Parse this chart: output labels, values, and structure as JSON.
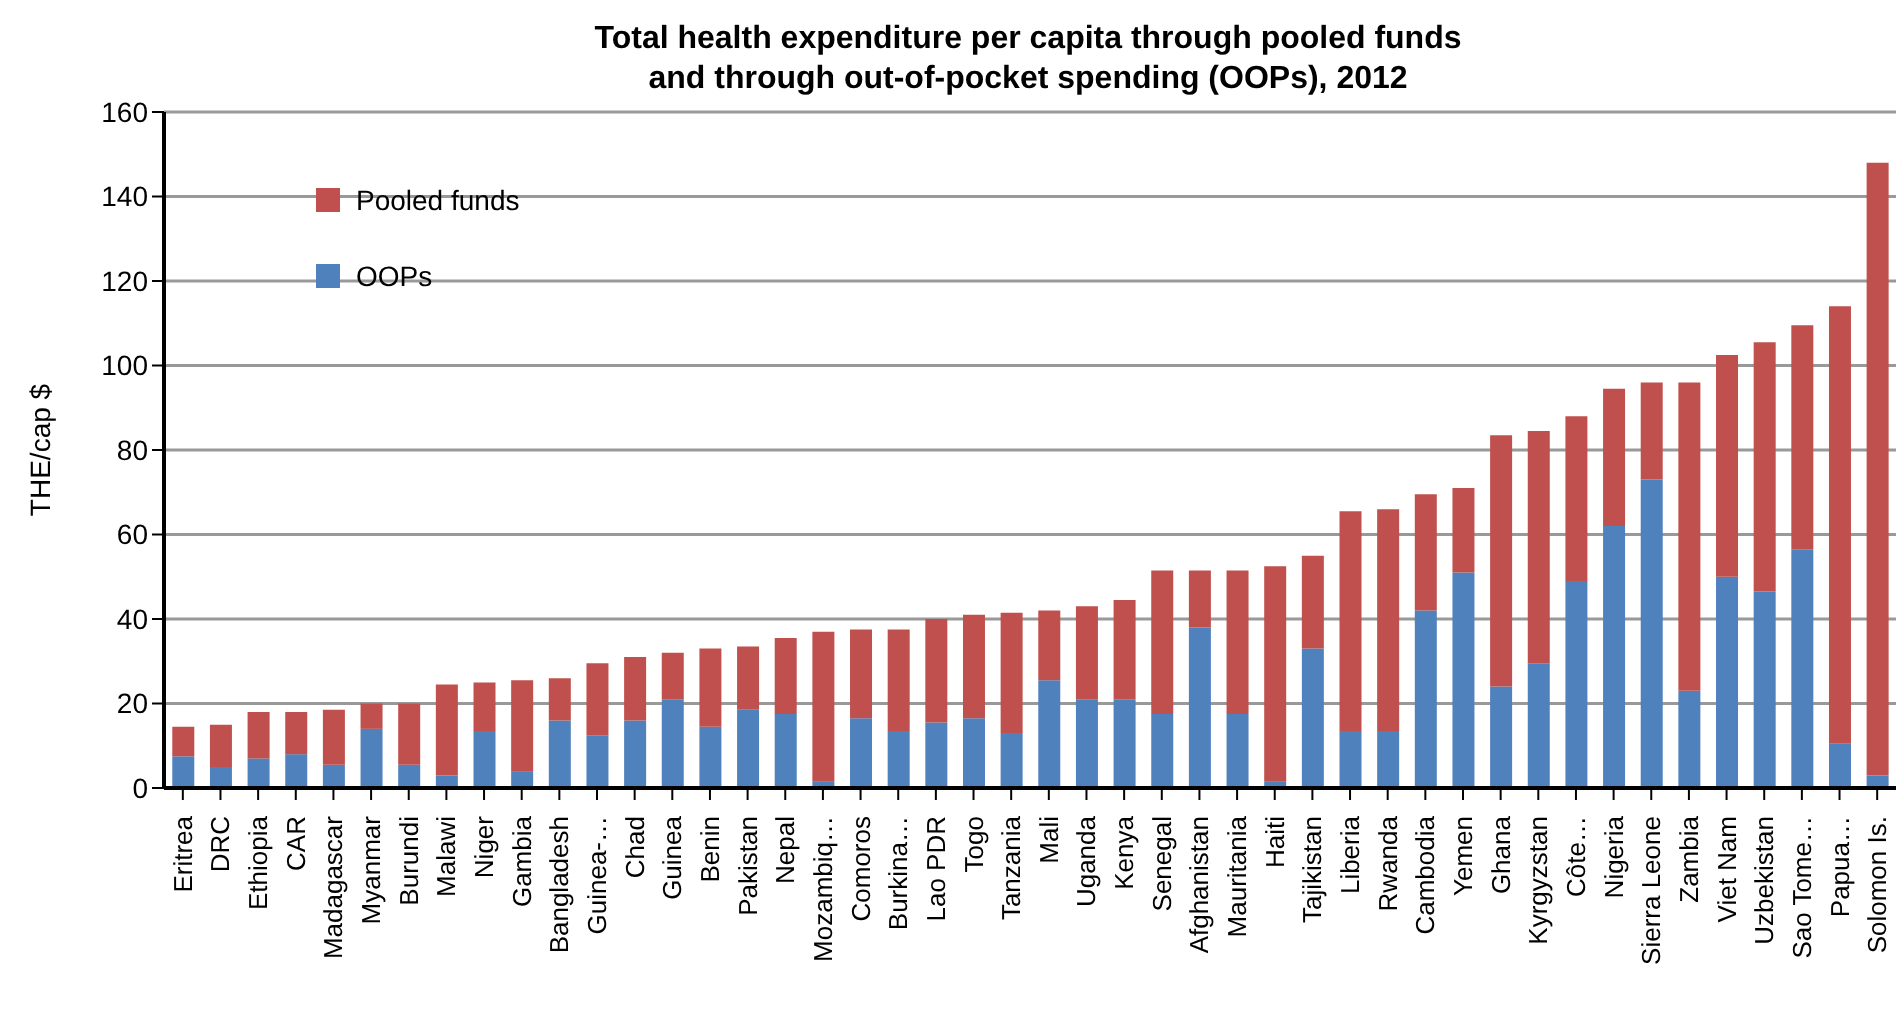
{
  "chart_data": {
    "type": "bar",
    "title": "Total health expenditure per capita through pooled funds and through out-of-pocket spending (OOPs), 2012",
    "ylabel": "THE/cap $",
    "categories": [
      "Eritrea",
      "DRC",
      "Ethiopia",
      "CAR",
      "Madagascar",
      "Myanmar",
      "Burundi",
      "Malawi",
      "Niger",
      "Gambia",
      "Bangladesh",
      "Guinea-…",
      "Chad",
      "Guinea",
      "Benin",
      "Pakistan",
      "Nepal",
      "Mozambiq…",
      "Comoros",
      "Burkina…",
      "Lao PDR",
      "Togo",
      "Tanzania",
      "Mali",
      "Uganda",
      "Kenya",
      "Senegal",
      "Afghanistan",
      "Mauritania",
      "Haiti",
      "Tajikistan",
      "Liberia",
      "Rwanda",
      "Cambodia",
      "Yemen",
      "Ghana",
      "Kyrgyzstan",
      "Côte…",
      "Nigeria",
      "Sierra Leone",
      "Zambia",
      "Viet Nam",
      "Uzbekistan",
      "Sao Tome…",
      "Papua…",
      "Solomon Is."
    ],
    "series": [
      {
        "name": "OOPs",
        "color": "#4f81bd",
        "values": [
          7.5,
          5,
          7,
          8,
          5.5,
          14,
          5.5,
          3,
          13.5,
          4,
          16,
          12.5,
          16,
          21,
          14.5,
          18.5,
          17.5,
          1.5,
          16.5,
          13.5,
          15.5,
          16.5,
          13,
          25.5,
          21,
          21,
          17.5,
          38,
          17.5,
          1.5,
          33,
          13.5,
          13.5,
          42,
          51,
          24,
          29.5,
          49,
          62,
          73,
          23,
          50,
          46.5,
          56.5,
          10.5,
          3
        ]
      },
      {
        "name": "Pooled funds",
        "color": "#c0504d",
        "values": [
          7,
          10,
          11,
          10,
          13,
          6,
          14.5,
          21.5,
          11.5,
          21.5,
          10,
          17,
          15,
          11,
          18.5,
          15,
          18,
          35.5,
          21,
          24,
          24.5,
          24.5,
          28.5,
          16.5,
          22,
          23.5,
          34,
          13.5,
          34,
          51,
          22,
          52,
          52.5,
          27.5,
          20,
          59.5,
          55,
          39,
          32.5,
          23,
          73,
          52.5,
          59,
          53,
          103.5,
          145
        ]
      }
    ],
    "stacked": true,
    "ylim": [
      0,
      160
    ],
    "yticks": [
      0,
      20,
      40,
      60,
      80,
      100,
      120,
      140,
      160
    ],
    "grid": "y",
    "legend": "top left"
  }
}
